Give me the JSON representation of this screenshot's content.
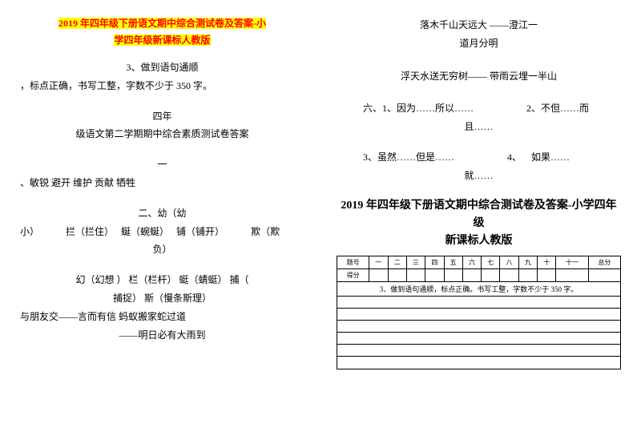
{
  "left": {
    "title_line1": "2019 年四年级下册语文期中综合测试卷及答案-小",
    "title_line2": "学四年级新课标人教版",
    "q3_line1": "3、做到语句通顺",
    "q3_line2": "，标点正确，书写工整，字数不少于 350 字。",
    "ans_h1": "四年",
    "ans_h2": "级语文第二学期期中综合素质测试卷答案",
    "sec1_h": "一",
    "sec1": "、敏锐    避开    维护  贡献  牺牲",
    "sec2_h": "二、幼（幼",
    "sec2_l1_a": "小）",
    "sec2_l1_b": "拦（拦住）",
    "sec2_l1_c": "蜒（蜿蜒）",
    "sec2_l1_d": "铺（铺开）",
    "sec2_l1_e": "欺（欺",
    "sec2_l2": "负）",
    "sec2_l3": "幻（幻想 ）    栏（栏杆）    蜓（蜻蜓）    捕（",
    "sec2_l4": "捕捉）    斯（慢条斯理）",
    "sec2_l5": "与朋友交——言而有信        蚂蚁搬家蛇过道",
    "sec2_l6": "——明日必有大雨到"
  },
  "right": {
    "poem_l1": "落木千山天远大  ——澄江一",
    "poem_l2": "道月分明",
    "poem_l3": "浮天水送无穷树——  带雨云埋一半山",
    "six_l1a": "六、1、因为……所以……",
    "six_l1b": "2、不但……而",
    "six_l2": "且……",
    "six_l3a": "3、虽然……但是……",
    "six_l3b": "4、",
    "six_l3c": "如果……",
    "six_l4": "就……",
    "heading_l1": "2019 年四年级下册语文期中综合测试卷及答案-小学四年级",
    "heading_l2": "新课标人教版",
    "table_headers": [
      "题号",
      "一",
      "二",
      "三",
      "四",
      "五",
      "六",
      "七",
      "八",
      "九",
      "十",
      "十一",
      "总分"
    ],
    "table_row2_label": "得分",
    "instruction": "3、做到语句通顺，标点正确。书写工整，字数不少于 350 字。"
  }
}
